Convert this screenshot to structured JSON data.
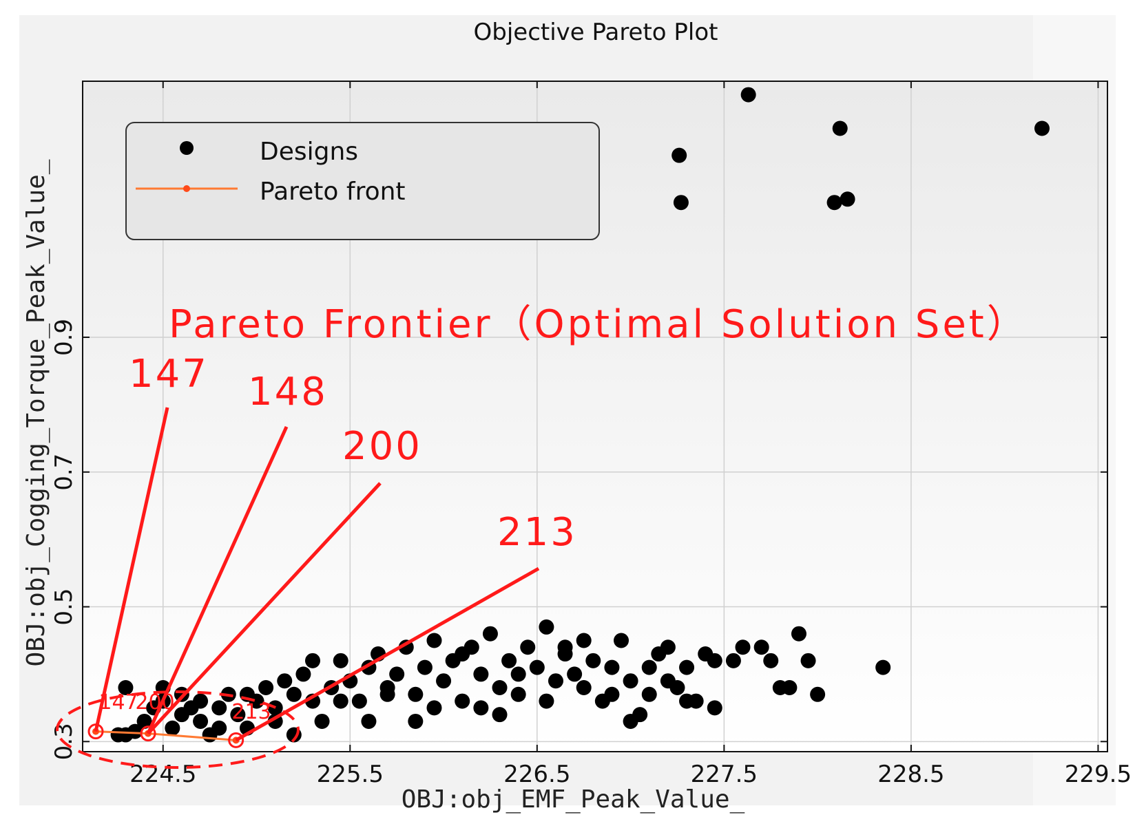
{
  "chart_data": {
    "type": "scatter",
    "title": "Objective Pareto Plot",
    "xlabel": "OBJ:obj_EMF_Peak_Value_",
    "ylabel": "OBJ:obj_Cogging_Torque_Peak_Value_",
    "xlim": [
      224.07,
      229.55
    ],
    "ylim": [
      0.285,
      1.28
    ],
    "xticks": [
      224.5,
      225.5,
      226.5,
      227.5,
      228.5,
      229.5
    ],
    "xtick_labels": [
      "224.5",
      "225.5",
      "226.5",
      "227.5",
      "228.5",
      "229.5"
    ],
    "yticks": [
      0.3,
      0.5,
      0.7,
      0.9
    ],
    "ytick_labels": [
      "0.3",
      "0.5",
      "0.7",
      "0.9"
    ],
    "grid": true,
    "legend": {
      "placement": "top-left",
      "entries": [
        {
          "label": "Designs",
          "color": "#000000",
          "marker": "dot"
        },
        {
          "label": "Pareto front",
          "color": "#ff7a33",
          "marker": "line"
        }
      ]
    },
    "series": [
      {
        "name": "Designs",
        "color": "#000000",
        "points": [
          [
            227.63,
            1.26
          ],
          [
            228.12,
            1.21
          ],
          [
            229.2,
            1.21
          ],
          [
            227.26,
            1.17
          ],
          [
            227.27,
            1.1
          ],
          [
            228.09,
            1.1
          ],
          [
            228.16,
            1.105
          ],
          [
            224.26,
            0.31
          ],
          [
            224.3,
            0.31
          ],
          [
            224.35,
            0.315
          ],
          [
            224.4,
            0.33
          ],
          [
            224.45,
            0.35
          ],
          [
            224.5,
            0.36
          ],
          [
            224.55,
            0.32
          ],
          [
            224.6,
            0.34
          ],
          [
            224.65,
            0.35
          ],
          [
            224.7,
            0.33
          ],
          [
            224.75,
            0.31
          ],
          [
            224.8,
            0.35
          ],
          [
            224.85,
            0.37
          ],
          [
            224.9,
            0.34
          ],
          [
            224.95,
            0.32
          ],
          [
            225.0,
            0.36
          ],
          [
            225.05,
            0.38
          ],
          [
            225.1,
            0.35
          ],
          [
            225.15,
            0.39
          ],
          [
            225.2,
            0.37
          ],
          [
            225.25,
            0.4
          ],
          [
            225.3,
            0.36
          ],
          [
            225.35,
            0.33
          ],
          [
            225.4,
            0.38
          ],
          [
            225.45,
            0.42
          ],
          [
            225.5,
            0.39
          ],
          [
            225.55,
            0.36
          ],
          [
            225.6,
            0.41
          ],
          [
            225.65,
            0.43
          ],
          [
            225.7,
            0.38
          ],
          [
            225.75,
            0.4
          ],
          [
            225.8,
            0.44
          ],
          [
            225.85,
            0.37
          ],
          [
            225.9,
            0.41
          ],
          [
            225.95,
            0.45
          ],
          [
            226.0,
            0.39
          ],
          [
            226.05,
            0.42
          ],
          [
            226.1,
            0.36
          ],
          [
            226.15,
            0.44
          ],
          [
            226.2,
            0.4
          ],
          [
            226.25,
            0.46
          ],
          [
            226.3,
            0.38
          ],
          [
            226.35,
            0.42
          ],
          [
            226.4,
            0.37
          ],
          [
            226.45,
            0.44
          ],
          [
            226.5,
            0.41
          ],
          [
            226.55,
            0.47
          ],
          [
            226.6,
            0.39
          ],
          [
            226.65,
            0.43
          ],
          [
            226.7,
            0.4
          ],
          [
            226.75,
            0.38
          ],
          [
            226.8,
            0.42
          ],
          [
            226.85,
            0.36
          ],
          [
            226.9,
            0.41
          ],
          [
            226.95,
            0.45
          ],
          [
            227.0,
            0.39
          ],
          [
            227.05,
            0.34
          ],
          [
            227.1,
            0.37
          ],
          [
            227.15,
            0.43
          ],
          [
            227.2,
            0.44
          ],
          [
            227.25,
            0.38
          ],
          [
            227.3,
            0.41
          ],
          [
            227.35,
            0.36
          ],
          [
            227.4,
            0.43
          ],
          [
            227.45,
            0.35
          ],
          [
            227.55,
            0.42
          ],
          [
            227.6,
            0.44
          ],
          [
            227.7,
            0.44
          ],
          [
            227.75,
            0.42
          ],
          [
            227.8,
            0.38
          ],
          [
            227.85,
            0.38
          ],
          [
            227.9,
            0.46
          ],
          [
            227.95,
            0.42
          ],
          [
            228.0,
            0.37
          ],
          [
            228.35,
            0.41
          ],
          [
            224.3,
            0.38
          ],
          [
            224.5,
            0.38
          ],
          [
            224.6,
            0.37
          ],
          [
            224.7,
            0.36
          ],
          [
            224.8,
            0.32
          ],
          [
            224.95,
            0.37
          ],
          [
            225.1,
            0.33
          ],
          [
            225.2,
            0.31
          ],
          [
            225.3,
            0.42
          ],
          [
            225.45,
            0.36
          ],
          [
            225.6,
            0.33
          ],
          [
            225.7,
            0.37
          ],
          [
            225.85,
            0.33
          ],
          [
            225.95,
            0.35
          ],
          [
            226.1,
            0.43
          ],
          [
            226.2,
            0.35
          ],
          [
            226.3,
            0.34
          ],
          [
            226.4,
            0.4
          ],
          [
            226.55,
            0.36
          ],
          [
            226.65,
            0.44
          ],
          [
            226.75,
            0.45
          ],
          [
            226.9,
            0.37
          ],
          [
            227.0,
            0.33
          ],
          [
            227.1,
            0.41
          ],
          [
            227.2,
            0.39
          ],
          [
            227.3,
            0.36
          ],
          [
            227.45,
            0.42
          ]
        ]
      },
      {
        "name": "Pareto front",
        "color": "#ff7a33",
        "points": [
          [
            224.14,
            0.315
          ],
          [
            224.42,
            0.312
          ],
          [
            224.89,
            0.302
          ]
        ]
      }
    ],
    "annotations": {
      "heading": "Pareto Frontier（Optimal Solution Set）",
      "callouts": [
        {
          "label": "147",
          "x": 224.14,
          "y": 0.315
        },
        {
          "label": "148",
          "x": 224.42,
          "y": 0.312
        },
        {
          "label": "200",
          "x": 224.42,
          "y": 0.312
        },
        {
          "label": "213",
          "x": 224.89,
          "y": 0.302
        }
      ],
      "small_labels": [
        "147",
        "200",
        "213"
      ]
    }
  }
}
